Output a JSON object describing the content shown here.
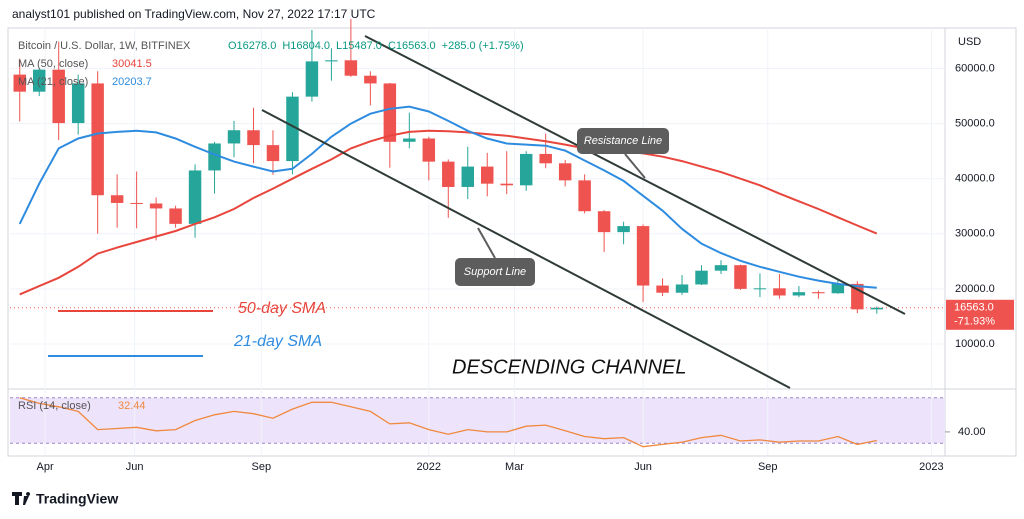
{
  "header": {
    "publisher": "analyst101 published on TradingView.com, Nov 27, 2022 17:17 UTC"
  },
  "footer": {
    "brand": "TradingView"
  },
  "chart_data": {
    "type": "candlestick",
    "title": "Bitcoin / U.S. Dollar, 1W, BITFINEX",
    "legend_ohlc": [
      "O16278.0",
      "H16804.0",
      "L15487.0",
      "C16563.0",
      "+285.0 (+1.75%)"
    ],
    "y_unit": "USD",
    "up_color": "#26a69a",
    "down_color": "#ef5350",
    "open": [
      58900,
      55800,
      59800,
      50100,
      57300,
      37000,
      35600,
      35500,
      34600,
      31800,
      41500,
      46400,
      48800,
      46100,
      43200,
      54900,
      61300,
      61500,
      58700,
      57300,
      46700,
      47300,
      43100,
      38500,
      42200,
      39100,
      38800,
      44500,
      42800,
      39700,
      34100,
      30300,
      31400,
      20600,
      19300,
      20800,
      23300,
      24300,
      20000,
      20100,
      18800,
      19400,
      19200,
      20900,
      16278
    ],
    "high": [
      61800,
      60000,
      64900,
      58900,
      59500,
      40800,
      41300,
      36600,
      35100,
      42600,
      46700,
      50500,
      52900,
      48800,
      55700,
      67000,
      63700,
      69000,
      59500,
      57400,
      52000,
      47600,
      43500,
      45800,
      44700,
      45000,
      45000,
      48200,
      43400,
      40800,
      34300,
      32200,
      31700,
      21900,
      22500,
      24300,
      25200,
      24400,
      22800,
      22700,
      20500,
      19700,
      21500,
      21400,
      16804
    ],
    "low": [
      50400,
      55000,
      47000,
      48000,
      30000,
      31100,
      31000,
      28800,
      31100,
      29300,
      37300,
      43900,
      42800,
      40700,
      40800,
      54000,
      57800,
      58500,
      53300,
      42000,
      45500,
      39700,
      32900,
      36300,
      36800,
      37200,
      37800,
      41900,
      38600,
      33700,
      26700,
      28100,
      17600,
      18700,
      18900,
      20700,
      22700,
      19800,
      18500,
      18200,
      18500,
      18200,
      19100,
      15600,
      15487
    ],
    "close": [
      55800,
      59800,
      50100,
      57300,
      37000,
      35600,
      35500,
      34600,
      31800,
      41500,
      46400,
      48800,
      46100,
      43200,
      54900,
      61300,
      61500,
      58700,
      57300,
      46700,
      47300,
      43100,
      38500,
      42200,
      39100,
      38800,
      44500,
      42800,
      39700,
      34100,
      30300,
      31400,
      20600,
      19300,
      20800,
      23300,
      24300,
      20000,
      20100,
      18800,
      19400,
      19200,
      20900,
      16278,
      16563
    ],
    "last_price_labels": [
      "16563.0",
      "-71.93%"
    ],
    "overlays": [
      {
        "name": "MA (50, close)",
        "color": "#e8453c",
        "value_label": "30041.5",
        "values": [
          19000,
          20500,
          22000,
          24000,
          26400,
          27500,
          28500,
          29500,
          30500,
          31800,
          33000,
          34500,
          36500,
          38200,
          40000,
          41800,
          43500,
          45500,
          46800,
          47800,
          48500,
          48700,
          48600,
          48400,
          48100,
          47800,
          47300,
          46800,
          46200,
          45500,
          45300,
          45000,
          44600,
          44000,
          43200,
          42200,
          41200,
          40000,
          38800,
          37300,
          35900,
          34500,
          33000,
          31500,
          30041.5
        ]
      },
      {
        "name": "MA (21, close)",
        "color": "#2e8ce0",
        "value_label": "20203.7",
        "values": [
          31800,
          39100,
          45500,
          47300,
          48200,
          48500,
          48700,
          48400,
          47300,
          45800,
          44400,
          43100,
          42200,
          41300,
          41800,
          44500,
          47600,
          50000,
          51800,
          52700,
          53100,
          52200,
          50500,
          48700,
          47300,
          46400,
          46200,
          46000,
          45100,
          43300,
          41500,
          39600,
          36900,
          34200,
          30900,
          28200,
          26500,
          25100,
          24000,
          23100,
          22200,
          21500,
          20900,
          20500,
          20203.7
        ]
      }
    ],
    "xlim": [
      -0.5,
      47.5
    ],
    "xticks": [
      {
        "value": 1.3,
        "label": "Apr"
      },
      {
        "value": 5.9,
        "label": "Jun"
      },
      {
        "value": 12.4,
        "label": "Sep"
      },
      {
        "value": 21.0,
        "label": "2022"
      },
      {
        "value": 25.4,
        "label": "Mar"
      },
      {
        "value": 32.0,
        "label": "Jun"
      },
      {
        "value": 38.4,
        "label": "Sep"
      },
      {
        "value": 46.8,
        "label": "2023"
      }
    ],
    "ylim": [
      2000,
      67000
    ],
    "yticks": [
      {
        "value": 10000,
        "label": "10000.0"
      },
      {
        "value": 20000,
        "label": "20000.0"
      },
      {
        "value": 30000,
        "label": "30000.0"
      },
      {
        "value": 40000,
        "label": "40000.0"
      },
      {
        "value": 50000,
        "label": "50000.0"
      },
      {
        "value": 60000,
        "label": "60000.0"
      }
    ],
    "rsi": {
      "name": "RSI (14, close)",
      "color": "#f0883e",
      "value_label": "32.44",
      "values": [
        70,
        65,
        62,
        58,
        42,
        43,
        44,
        41,
        42,
        50,
        55,
        58,
        56,
        52,
        60,
        66,
        66,
        62,
        58,
        47,
        48,
        42,
        38,
        42,
        40,
        40,
        45,
        46,
        41,
        36,
        34,
        35,
        27,
        29,
        31,
        35,
        37,
        32,
        33,
        31,
        32,
        32,
        36,
        29,
        32.44
      ],
      "ylim": [
        25,
        75
      ],
      "yticks": [
        {
          "value": 40,
          "label": "40.00"
        }
      ],
      "band": [
        30,
        70
      ],
      "band_color": "#ede4fb"
    },
    "annotations": {
      "resistance": "Resistance Line",
      "support": "Support Line",
      "sma50": "50-day SMA",
      "sma21": "21-day SMA",
      "channel": "DESCENDING CHANNEL"
    }
  }
}
